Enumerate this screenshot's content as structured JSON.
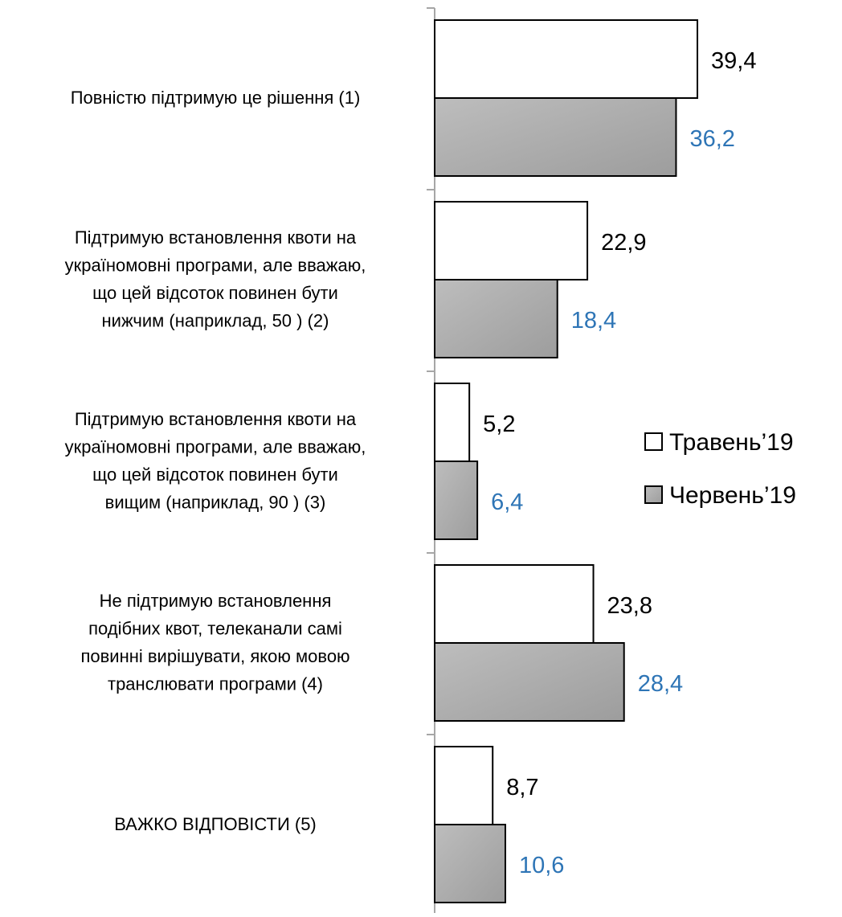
{
  "chart_data": {
    "type": "bar",
    "orientation": "horizontal",
    "categories": [
      [
        "Повністю підтримую це рішення (1)"
      ],
      [
        "Підтримую встановлення квоти на",
        "україномовні програми, але вважаю,",
        "що цей відсоток повинен бути",
        "нижчим (наприклад, 50 ) (2)"
      ],
      [
        "Підтримую встановлення квоти на",
        "україномовні програми, але вважаю,",
        "що цей відсоток повинен бути",
        "вищим (наприклад, 90 ) (3)"
      ],
      [
        "Не підтримую встановлення",
        "подібних квот, телеканали самі",
        "повинні вирішувати, якою мовою",
        "транслювати програми (4)"
      ],
      [
        "ВАЖКО ВІДПОВІСТИ (5)"
      ]
    ],
    "series": [
      {
        "name": "Травень’19",
        "color": "#ffffff",
        "label_color": "#000000",
        "values": [
          39.4,
          22.9,
          5.2,
          23.8,
          8.7
        ],
        "value_labels": [
          "39,4",
          "22,9",
          "5,2",
          "23,8",
          "8,7"
        ]
      },
      {
        "name": "Червень’19",
        "color": "#ababab",
        "label_color": "#2e75b6",
        "values": [
          36.2,
          18.4,
          6.4,
          28.4,
          10.6
        ],
        "value_labels": [
          "36,2",
          "18,4",
          "6,4",
          "28,4",
          "10,6"
        ]
      }
    ],
    "legend": "right"
  }
}
